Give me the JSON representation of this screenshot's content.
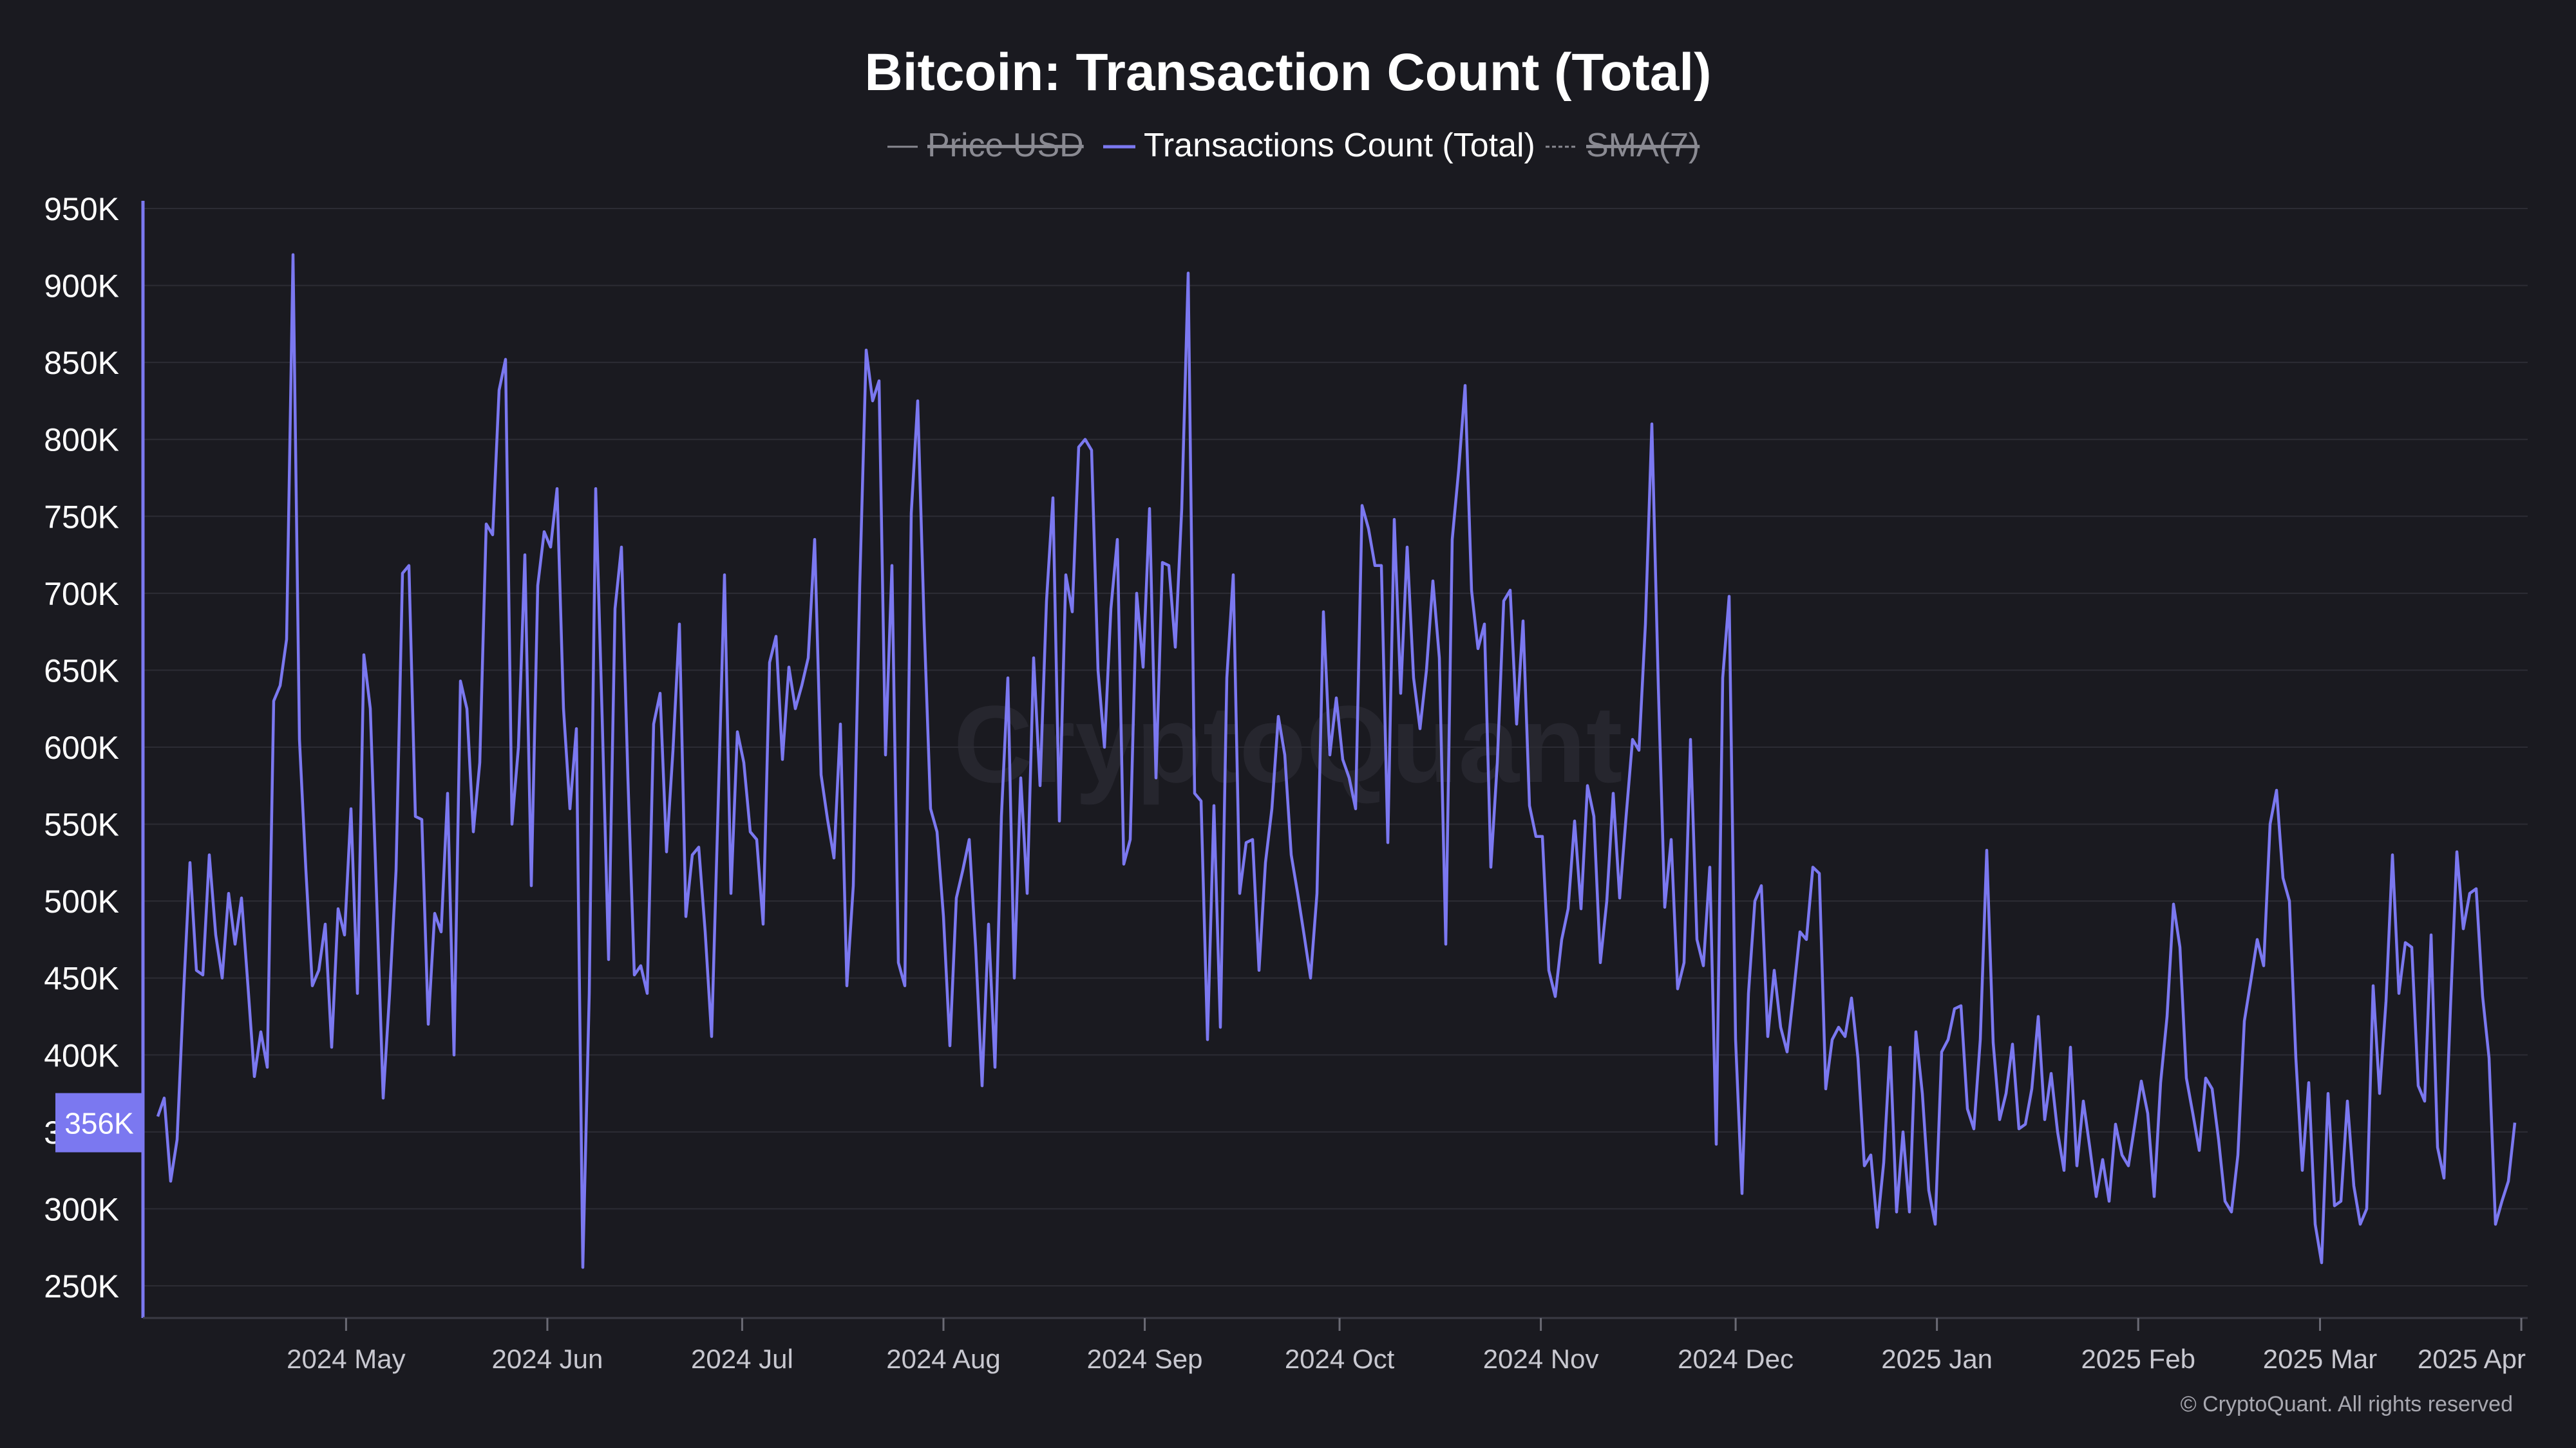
{
  "colors": {
    "background": "#1a1a20",
    "series": "#7b78f0",
    "grid": "#2c2c34",
    "axis_text": "#ffffff",
    "muted": "#8a8a92",
    "badge": "#7b78f0"
  },
  "watermark": "CryptoQuant",
  "copyright": "© CryptoQuant. All rights reserved",
  "chart_data": {
    "type": "line",
    "title": "Bitcoin: Transaction Count (Total)",
    "legend": [
      {
        "label": "Price USD",
        "state": "hidden",
        "color": "#8a8a92"
      },
      {
        "label": "Transactions Count (Total)",
        "state": "visible",
        "color": "#7b78f0"
      },
      {
        "label": "SMA(7)",
        "state": "hidden",
        "color": "#8a8a92"
      }
    ],
    "ylim": [
      230000,
      955000
    ],
    "y_ticks": [
      {
        "value": 250000,
        "label": "250K"
      },
      {
        "value": 300000,
        "label": "300K"
      },
      {
        "value": 350000,
        "label": "350K"
      },
      {
        "value": 400000,
        "label": "400K"
      },
      {
        "value": 450000,
        "label": "450K"
      },
      {
        "value": 500000,
        "label": "500K"
      },
      {
        "value": 550000,
        "label": "550K"
      },
      {
        "value": 600000,
        "label": "600K"
      },
      {
        "value": 650000,
        "label": "650K"
      },
      {
        "value": 700000,
        "label": "700K"
      },
      {
        "value": 750000,
        "label": "750K"
      },
      {
        "value": 800000,
        "label": "800K"
      },
      {
        "value": 850000,
        "label": "850K"
      },
      {
        "value": 900000,
        "label": "900K"
      },
      {
        "value": 950000,
        "label": "950K"
      }
    ],
    "x_range_days": [
      0,
      363
    ],
    "x_start": "2024-04-02",
    "x_ticks": [
      {
        "day": 29,
        "label": "2024 May"
      },
      {
        "day": 60,
        "label": "2024 Jun"
      },
      {
        "day": 90,
        "label": "2024 Jul"
      },
      {
        "day": 121,
        "label": "2024 Aug"
      },
      {
        "day": 152,
        "label": "2024 Sep"
      },
      {
        "day": 182,
        "label": "2024 Oct"
      },
      {
        "day": 213,
        "label": "2024 Nov"
      },
      {
        "day": 243,
        "label": "2024 Dec"
      },
      {
        "day": 274,
        "label": "2025 Jan"
      },
      {
        "day": 305,
        "label": "2025 Feb"
      },
      {
        "day": 333,
        "label": "2025 Mar"
      },
      {
        "day": 364,
        "label": "2025 Apr"
      }
    ],
    "current_value_label": "356K",
    "current_value": 356000,
    "series": [
      {
        "name": "Transactions Count (Total)",
        "values": [
          360000,
          372000,
          318000,
          345000,
          440000,
          525000,
          455000,
          452000,
          530000,
          478000,
          450000,
          505000,
          472000,
          502000,
          445000,
          386000,
          415000,
          392000,
          630000,
          640000,
          670000,
          920000,
          605000,
          520000,
          445000,
          455000,
          485000,
          405000,
          495000,
          478000,
          560000,
          440000,
          660000,
          625000,
          500000,
          372000,
          440000,
          520000,
          713000,
          718000,
          555000,
          553000,
          420000,
          492000,
          480000,
          570000,
          400000,
          643000,
          625000,
          545000,
          590000,
          745000,
          738000,
          832000,
          852000,
          550000,
          600000,
          725000,
          510000,
          705000,
          740000,
          730000,
          768000,
          625000,
          560000,
          612000,
          262000,
          440000,
          768000,
          620000,
          462000,
          690000,
          730000,
          580000,
          452000,
          458000,
          440000,
          615000,
          635000,
          532000,
          598000,
          680000,
          490000,
          530000,
          535000,
          480000,
          412000,
          560000,
          712000,
          505000,
          610000,
          590000,
          545000,
          540000,
          485000,
          655000,
          672000,
          592000,
          652000,
          625000,
          640000,
          658000,
          735000,
          582000,
          553000,
          528000,
          615000,
          445000,
          510000,
          705000,
          858000,
          825000,
          838000,
          595000,
          718000,
          460000,
          445000,
          752000,
          825000,
          680000,
          560000,
          545000,
          490000,
          406000,
          502000,
          520000,
          540000,
          470000,
          380000,
          485000,
          392000,
          555000,
          645000,
          450000,
          580000,
          505000,
          658000,
          575000,
          695000,
          762000,
          552000,
          712000,
          688000,
          795000,
          800000,
          793000,
          650000,
          600000,
          690000,
          735000,
          524000,
          540000,
          700000,
          652000,
          755000,
          580000,
          720000,
          718000,
          665000,
          755000,
          908000,
          570000,
          565000,
          410000,
          562000,
          418000,
          645000,
          712000,
          505000,
          538000,
          540000,
          455000,
          525000,
          560000,
          620000,
          595000,
          530000,
          505000,
          478000,
          450000,
          505000,
          688000,
          595000,
          632000,
          592000,
          580000,
          560000,
          757000,
          742000,
          718000,
          718000,
          538000,
          748000,
          635000,
          730000,
          645000,
          612000,
          650000,
          708000,
          658000,
          472000,
          735000,
          780000,
          835000,
          702000,
          664000,
          680000,
          522000,
          590000,
          695000,
          702000,
          615000,
          682000,
          562000,
          542000,
          542000,
          455000,
          438000,
          475000,
          495000,
          552000,
          495000,
          575000,
          555000,
          460000,
          500000,
          570000,
          502000,
          555000,
          605000,
          598000,
          680000,
          810000,
          640000,
          496000,
          540000,
          443000,
          460000,
          605000,
          475000,
          458000,
          522000,
          342000,
          645000,
          698000,
          410000,
          310000,
          440000,
          500000,
          510000,
          412000,
          455000,
          418000,
          402000,
          440000,
          480000,
          475000,
          522000,
          518000,
          378000,
          410000,
          418000,
          412000,
          437000,
          398000,
          328000,
          335000,
          288000,
          330000,
          405000,
          298000,
          350000,
          298000,
          415000,
          375000,
          312000,
          290000,
          402000,
          410000,
          430000,
          432000,
          365000,
          352000,
          410000,
          533000,
          408000,
          358000,
          375000,
          407000,
          352000,
          355000,
          378000,
          425000,
          358000,
          388000,
          350000,
          325000,
          405000,
          328000,
          370000,
          340000,
          308000,
          332000,
          305000,
          355000,
          335000,
          328000,
          355000,
          383000,
          362000,
          308000,
          382000,
          425000,
          498000,
          470000,
          385000,
          362000,
          338000,
          385000,
          378000,
          345000,
          305000,
          298000,
          335000,
          422000,
          448000,
          475000,
          458000,
          550000,
          572000,
          515000,
          500000,
          398000,
          325000,
          382000,
          290000,
          265000,
          375000,
          302000,
          305000,
          370000,
          315000,
          290000,
          300000,
          445000,
          375000,
          435000,
          530000,
          440000,
          473000,
          470000,
          380000,
          370000,
          478000,
          340000,
          320000,
          430000,
          532000,
          482000,
          505000,
          508000,
          438000,
          398000,
          290000,
          305000,
          318000,
          356000
        ]
      }
    ]
  }
}
